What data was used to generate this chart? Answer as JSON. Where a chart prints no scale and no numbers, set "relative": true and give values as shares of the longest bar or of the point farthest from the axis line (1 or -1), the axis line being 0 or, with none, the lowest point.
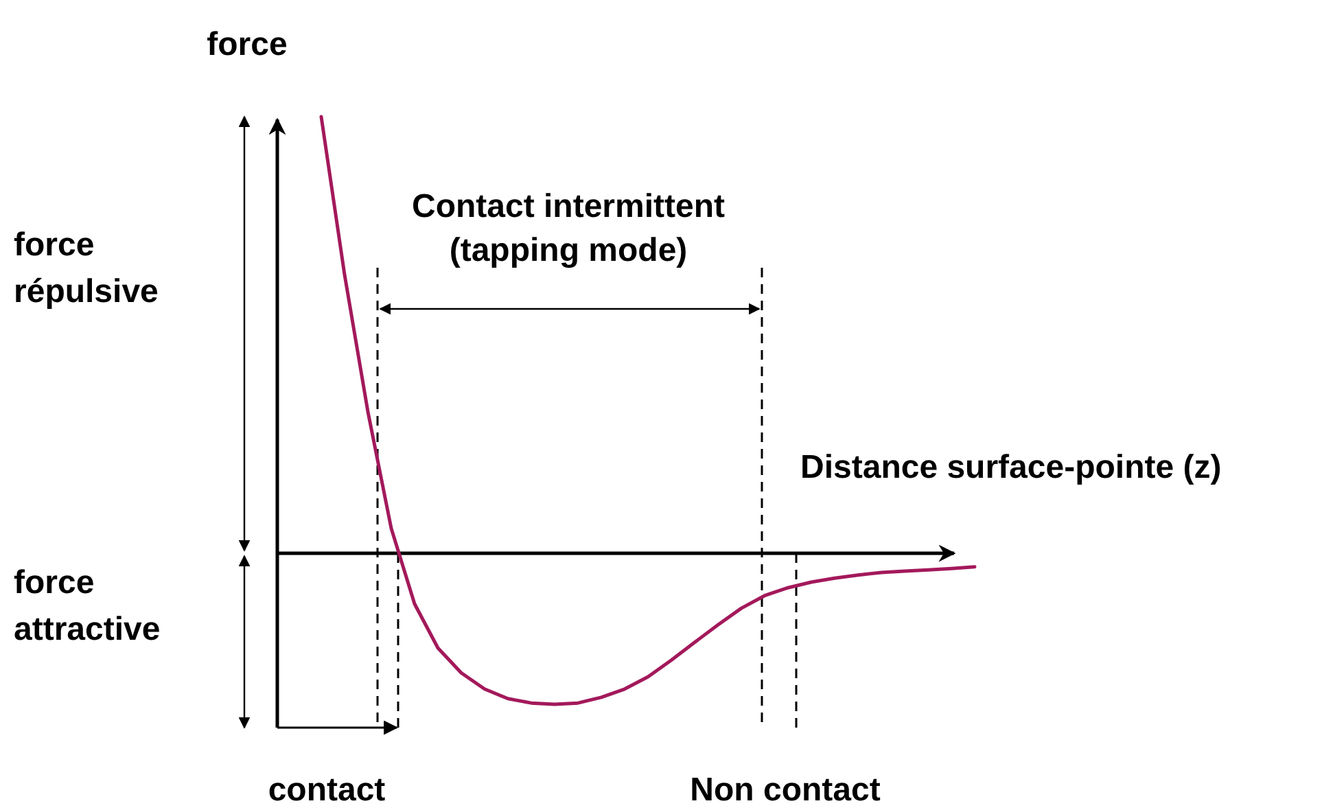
{
  "chart_data": {
    "type": "line",
    "relative": true,
    "ylabel": "force",
    "xlabel": "Distance surface-pointe (z)",
    "marker": "none",
    "line_style": "solid",
    "categories": [
      null,
      null,
      null,
      null,
      null,
      null,
      null,
      null,
      null,
      null,
      null,
      null,
      null,
      null,
      null,
      null,
      null,
      null,
      null,
      null,
      null,
      null,
      null,
      null,
      null,
      null,
      null,
      null,
      null
    ],
    "series": [
      {
        "color": "#a3195b",
        "values": [
          1.0,
          0.638,
          0.324,
          0.057,
          -0.116,
          -0.217,
          -0.274,
          -0.311,
          -0.333,
          -0.343,
          -0.346,
          -0.343,
          -0.33,
          -0.311,
          -0.283,
          -0.245,
          -0.204,
          -0.164,
          -0.126,
          -0.097,
          -0.079,
          -0.066,
          -0.057,
          -0.05,
          -0.044,
          -0.041,
          -0.038,
          -0.035,
          -0.031
        ]
      }
    ],
    "annotations": [
      "Contact intermittent\n(tapping mode)",
      "contact",
      "Non contact",
      "force\nrépulsive",
      "force\nattractive"
    ]
  }
}
